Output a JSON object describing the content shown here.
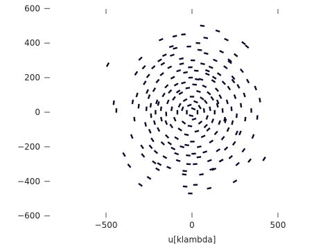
{
  "chart_data": {
    "type": "scatter",
    "title": "",
    "xlabel": "u[klambda]",
    "ylabel": "",
    "xlim": [
      -550,
      550
    ],
    "ylim": [
      -620,
      620
    ],
    "x_ticks": [
      -500,
      0,
      500
    ],
    "x_tick_labels": [
      "−500",
      "0",
      "500"
    ],
    "y_ticks": [
      600,
      400,
      200,
      0,
      -200,
      -400,
      -600
    ],
    "y_tick_labels": [
      "600",
      "400",
      "200",
      "0",
      "−200",
      "−400",
      "−600"
    ],
    "grid": false,
    "legend": "none",
    "marker": "short dash",
    "marker_color": "#0b0b2a",
    "series": [
      {
        "points": [
          [
            -490,
            275
          ],
          [
            -455,
            55
          ],
          [
            -440,
            10
          ],
          [
            -395,
            -245
          ],
          [
            -365,
            -310
          ],
          [
            -350,
            -140
          ],
          [
            -345,
            60
          ],
          [
            -335,
            -40
          ],
          [
            -325,
            225
          ],
          [
            -320,
            100
          ],
          [
            -310,
            35
          ],
          [
            -300,
            310
          ],
          [
            -290,
            -200
          ],
          [
            -285,
            -250
          ],
          [
            -275,
            170
          ],
          [
            -270,
            -70
          ],
          [
            -265,
            20
          ],
          [
            -255,
            210
          ],
          [
            -250,
            90
          ],
          [
            -245,
            -110
          ],
          [
            -240,
            40
          ],
          [
            -238,
            -20
          ],
          [
            -230,
            -160
          ],
          [
            -225,
            260
          ],
          [
            -220,
            130
          ],
          [
            -218,
            -60
          ],
          [
            -212,
            0
          ],
          [
            -210,
            -230
          ],
          [
            -205,
            60
          ],
          [
            -200,
            180
          ],
          [
            -195,
            -100
          ],
          [
            -190,
            -300
          ],
          [
            -188,
            300
          ],
          [
            -180,
            20
          ],
          [
            -178,
            -40
          ],
          [
            -175,
            220
          ],
          [
            -170,
            -180
          ],
          [
            -165,
            100
          ],
          [
            -160,
            330
          ],
          [
            -158,
            -260
          ],
          [
            -150,
            -10
          ],
          [
            -148,
            150
          ],
          [
            -145,
            -140
          ],
          [
            -140,
            60
          ],
          [
            -135,
            -320
          ],
          [
            -130,
            260
          ],
          [
            -128,
            120
          ],
          [
            -120,
            -80
          ],
          [
            -118,
            20
          ],
          [
            -112,
            200
          ],
          [
            -110,
            -210
          ],
          [
            -105,
            80
          ],
          [
            -100,
            -40
          ],
          [
            -98,
            370
          ],
          [
            -92,
            160
          ],
          [
            -90,
            -150
          ],
          [
            -85,
            0
          ],
          [
            -80,
            -280
          ],
          [
            -78,
            240
          ],
          [
            -72,
            40
          ],
          [
            -70,
            -100
          ],
          [
            -65,
            110
          ],
          [
            -62,
            310
          ],
          [
            -58,
            -200
          ],
          [
            -55,
            20
          ],
          [
            -50,
            170
          ],
          [
            -48,
            -60
          ],
          [
            -42,
            -340
          ],
          [
            -40,
            70
          ],
          [
            -38,
            230
          ],
          [
            -32,
            -130
          ],
          [
            -30,
            0
          ],
          [
            -25,
            140
          ],
          [
            -22,
            -250
          ],
          [
            -18,
            380
          ],
          [
            -15,
            40
          ],
          [
            -12,
            -80
          ],
          [
            -8,
            200
          ],
          [
            -5,
            -20
          ],
          [
            0,
            90
          ],
          [
            2,
            -170
          ],
          [
            5,
            300
          ],
          [
            8,
            20
          ],
          [
            12,
            -40
          ],
          [
            15,
            160
          ],
          [
            18,
            -300
          ],
          [
            22,
            60
          ],
          [
            25,
            240
          ],
          [
            28,
            -110
          ],
          [
            32,
            0
          ],
          [
            35,
            400
          ],
          [
            38,
            120
          ],
          [
            42,
            -200
          ],
          [
            45,
            30
          ],
          [
            48,
            -60
          ],
          [
            52,
            190
          ],
          [
            55,
            -360
          ],
          [
            58,
            80
          ],
          [
            62,
            280
          ],
          [
            65,
            -140
          ],
          [
            70,
            10
          ],
          [
            72,
            150
          ],
          [
            75,
            -230
          ],
          [
            80,
            60
          ],
          [
            82,
            340
          ],
          [
            88,
            -30
          ],
          [
            90,
            220
          ],
          [
            95,
            -100
          ],
          [
            98,
            110
          ],
          [
            102,
            -280
          ],
          [
            105,
            20
          ],
          [
            110,
            260
          ],
          [
            112,
            -170
          ],
          [
            118,
            80
          ],
          [
            120,
            -50
          ],
          [
            125,
            180
          ],
          [
            128,
            -330
          ],
          [
            132,
            0
          ],
          [
            135,
            300
          ],
          [
            140,
            -120
          ],
          [
            145,
            130
          ],
          [
            148,
            40
          ],
          [
            152,
            -220
          ],
          [
            158,
            220
          ],
          [
            160,
            -60
          ],
          [
            165,
            90
          ],
          [
            170,
            -280
          ],
          [
            172,
            350
          ],
          [
            178,
            10
          ],
          [
            180,
            -150
          ],
          [
            185,
            170
          ],
          [
            190,
            -40
          ],
          [
            195,
            260
          ],
          [
            198,
            -210
          ],
          [
            205,
            60
          ],
          [
            210,
            -100
          ],
          [
            215,
            140
          ],
          [
            220,
            300
          ],
          [
            225,
            -260
          ],
          [
            230,
            20
          ],
          [
            235,
            -60
          ],
          [
            240,
            200
          ],
          [
            245,
            -180
          ],
          [
            250,
            90
          ],
          [
            255,
            330
          ],
          [
            260,
            -20
          ],
          [
            265,
            -300
          ],
          [
            270,
            150
          ],
          [
            280,
            -120
          ],
          [
            285,
            40
          ],
          [
            290,
            240
          ],
          [
            300,
            -220
          ],
          [
            305,
            100
          ],
          [
            310,
            -40
          ],
          [
            320,
            380
          ],
          [
            325,
            180
          ],
          [
            335,
            -280
          ],
          [
            345,
            10
          ],
          [
            355,
            -140
          ],
          [
            370,
            140
          ],
          [
            380,
            -30
          ],
          [
            395,
            70
          ],
          [
            420,
            -270
          ],
          [
            -50,
            450
          ],
          [
            60,
            500
          ],
          [
            200,
            420
          ],
          [
            -180,
            420
          ],
          [
            -40,
            -430
          ],
          [
            100,
            -440
          ],
          [
            250,
            -400
          ],
          [
            -250,
            -380
          ],
          [
            -10,
            -470
          ],
          [
            150,
            470
          ],
          [
            -120,
            380
          ],
          [
            -100,
            440
          ],
          [
            80,
            430
          ],
          [
            -300,
            -420
          ],
          [
            300,
            400
          ],
          [
            20,
            -420
          ],
          [
            -200,
            -330
          ],
          [
            -60,
            280
          ],
          [
            40,
            -260
          ],
          [
            -130,
            -180
          ],
          [
            130,
            200
          ],
          [
            -20,
            -300
          ],
          [
            -260,
            120
          ],
          [
            260,
            -120
          ],
          [
            -80,
            120
          ],
          [
            80,
            -80
          ],
          [
            -150,
            -60
          ],
          [
            150,
            60
          ],
          [
            -30,
            -190
          ],
          [
            30,
            190
          ],
          [
            -90,
            -240
          ],
          [
            90,
            240
          ],
          [
            -170,
            280
          ],
          [
            170,
            -280
          ],
          [
            -220,
            -290
          ],
          [
            220,
            290
          ],
          [
            -10,
            260
          ],
          [
            10,
            -240
          ],
          [
            -115,
            330
          ],
          [
            115,
            -330
          ],
          [
            -195,
            50
          ],
          [
            195,
            -50
          ],
          [
            -240,
            -200
          ],
          [
            240,
            180
          ],
          [
            -45,
            -360
          ],
          [
            45,
            360
          ],
          [
            -280,
            260
          ]
        ]
      }
    ]
  }
}
